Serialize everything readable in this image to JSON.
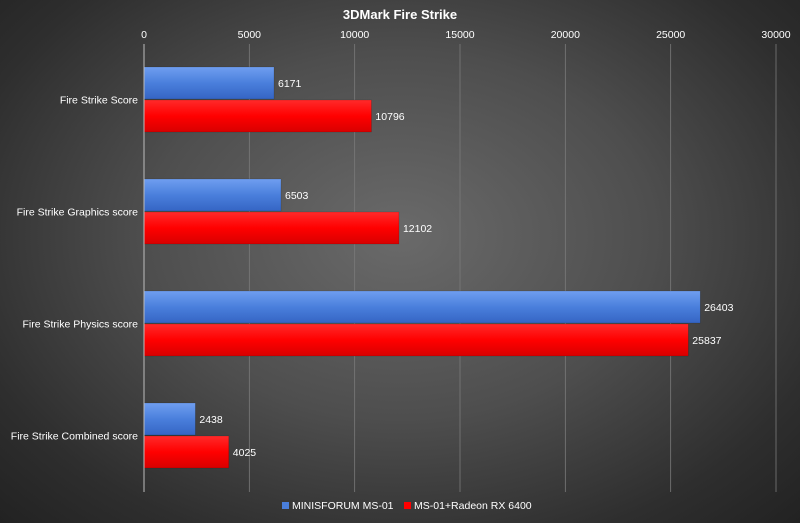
{
  "chart_data": {
    "type": "bar",
    "orientation": "horizontal",
    "title": "3DMark Fire Strike",
    "categories": [
      "Fire Strike Score",
      "Fire Strike Graphics score",
      "Fire Strike Physics score",
      "Fire Strike Combined score"
    ],
    "series": [
      {
        "name": "MINISFORUM MS-01",
        "values": [
          6171,
          6503,
          26403,
          2438
        ],
        "color": "#4a7fdc"
      },
      {
        "name": "MS-01+Radeon RX 6400",
        "values": [
          10796,
          12102,
          25837,
          4025
        ],
        "color": "#ff0000"
      }
    ],
    "xlim": [
      0,
      30000
    ],
    "xticks": [
      "0",
      "5000",
      "10000",
      "15000",
      "20000",
      "25000",
      "30000"
    ],
    "x_axis_position": "top",
    "grid": true,
    "legend": "bottom"
  }
}
